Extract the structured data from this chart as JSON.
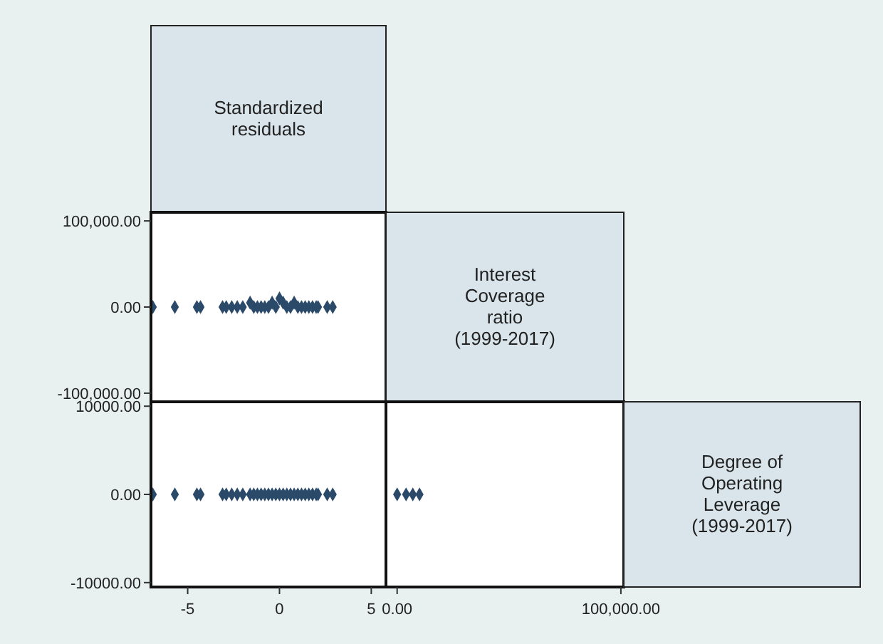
{
  "chart_data": [
    {
      "type": "other",
      "title": "Standardized\nresiduals"
    },
    {
      "type": "scatter",
      "marker": "diamond",
      "color": "#2b4a6a",
      "xlim": [
        -7,
        5.8
      ],
      "ylim": [
        -110000,
        110000
      ],
      "yticks": [
        {
          "value": 100000,
          "label": "100,000.00"
        },
        {
          "value": 0,
          "label": "0.00"
        },
        {
          "value": -100000,
          "label": "-100,000.00"
        }
      ],
      "tick_labels": "y",
      "x": [
        -6.9,
        -5.7,
        -4.5,
        -4.3,
        -3.1,
        -2.9,
        -2.6,
        -2.3,
        -2.0,
        -1.6,
        -1.4,
        -1.2,
        -1.0,
        -0.8,
        -0.6,
        -0.4,
        -0.2,
        0,
        0.2,
        0.4,
        0.6,
        0.8,
        1.0,
        1.2,
        1.4,
        1.6,
        1.8,
        2.0,
        2.1,
        2.6,
        2.9
      ],
      "values": [
        0,
        0,
        0,
        0,
        0,
        0,
        0,
        0,
        0,
        5000,
        0,
        0,
        0,
        0,
        0,
        5000,
        0,
        10000,
        5000,
        0,
        0,
        5000,
        0,
        0,
        0,
        0,
        0,
        0,
        0,
        0,
        0
      ]
    },
    {
      "type": "other",
      "title": "Interest\nCoverage\nratio\n(1999-2017)"
    },
    {
      "type": "scatter",
      "marker": "diamond",
      "color": "#2b4a6a",
      "xlim": [
        -7,
        5.8
      ],
      "ylim": [
        -10500,
        10500
      ],
      "xticks": [
        -5,
        0,
        5
      ],
      "yticks": [
        {
          "value": 10000,
          "label": "10000.00"
        },
        {
          "value": 0,
          "label": "0.00"
        },
        {
          "value": -10000,
          "label": "-10000.00"
        }
      ],
      "x": [
        -6.9,
        -5.7,
        -4.5,
        -4.3,
        -3.1,
        -2.9,
        -2.6,
        -2.3,
        -2.0,
        -1.6,
        -1.4,
        -1.2,
        -1.0,
        -0.8,
        -0.6,
        -0.4,
        -0.2,
        0,
        0.2,
        0.4,
        0.6,
        0.8,
        1.0,
        1.2,
        1.4,
        1.6,
        1.8,
        2.0,
        2.1,
        2.6,
        2.9
      ],
      "values": [
        0,
        0,
        0,
        0,
        0,
        0,
        0,
        0,
        0,
        0,
        0,
        0,
        0,
        0,
        0,
        0,
        0,
        0,
        0,
        0,
        0,
        0,
        0,
        0,
        0,
        0,
        0,
        0,
        0,
        0,
        0
      ]
    },
    {
      "type": "scatter",
      "marker": "diamond",
      "color": "#2b4a6a",
      "xlim": [
        -5000,
        101300
      ],
      "ylim": [
        -10500,
        10500
      ],
      "xticks": [
        {
          "value": 0,
          "label": "0.00"
        },
        {
          "value": 100000,
          "label": "100,000.00"
        }
      ],
      "tick_labels": "x",
      "x": [
        0,
        4000,
        7000,
        10000
      ],
      "values": [
        0,
        0,
        0,
        0
      ]
    },
    {
      "type": "other",
      "title": "Degree of\nOperating\nLeverage\n(1999-2017)"
    }
  ]
}
